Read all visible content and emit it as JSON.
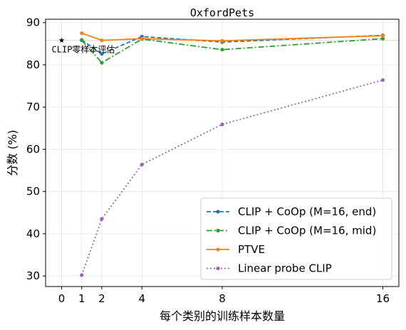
{
  "chart_data": {
    "type": "line",
    "title": "OxfordPets",
    "xlabel": "每个类别的训练样本数量",
    "ylabel": "分数 (%)",
    "x_ticks": [
      0,
      1,
      2,
      4,
      8,
      16
    ],
    "y_ticks": [
      30,
      40,
      50,
      60,
      70,
      80,
      90
    ],
    "ylim": [
      27.5,
      90.8
    ],
    "xlim": [
      -0.8,
      16.8
    ],
    "x_scale": "linear",
    "grid": true,
    "legend_position": "lower-right",
    "zero_shot": {
      "x": 0,
      "y": 85.8,
      "label": "CLIP零样本评估",
      "marker": "star",
      "color": "#000000"
    },
    "reference_line": {
      "y": 85.8
    },
    "series": [
      {
        "name": "CLIP + CoOp (M=16, end)",
        "color": "#1f77b4",
        "linestyle": "dashed",
        "x": [
          1,
          2,
          4,
          8,
          16
        ],
        "y": [
          85.9,
          82.6,
          86.7,
          85.4,
          87.0
        ]
      },
      {
        "name": "CLIP + CoOp (M=16, mid)",
        "color": "#2ca02c",
        "linestyle": "dashdot",
        "x": [
          1,
          2,
          4,
          8,
          16
        ],
        "y": [
          85.8,
          80.5,
          86.1,
          83.6,
          86.2
        ]
      },
      {
        "name": "PTVE",
        "color": "#ff7f0e",
        "linestyle": "solid",
        "x": [
          1,
          2,
          4,
          8,
          16
        ],
        "y": [
          87.5,
          85.8,
          86.2,
          85.7,
          86.9
        ]
      },
      {
        "name": "Linear probe CLIP",
        "color": "#9467bd",
        "linestyle": "dotted",
        "x": [
          1,
          2,
          4,
          8,
          16
        ],
        "y": [
          30.2,
          43.5,
          56.4,
          65.9,
          76.4
        ]
      }
    ]
  }
}
